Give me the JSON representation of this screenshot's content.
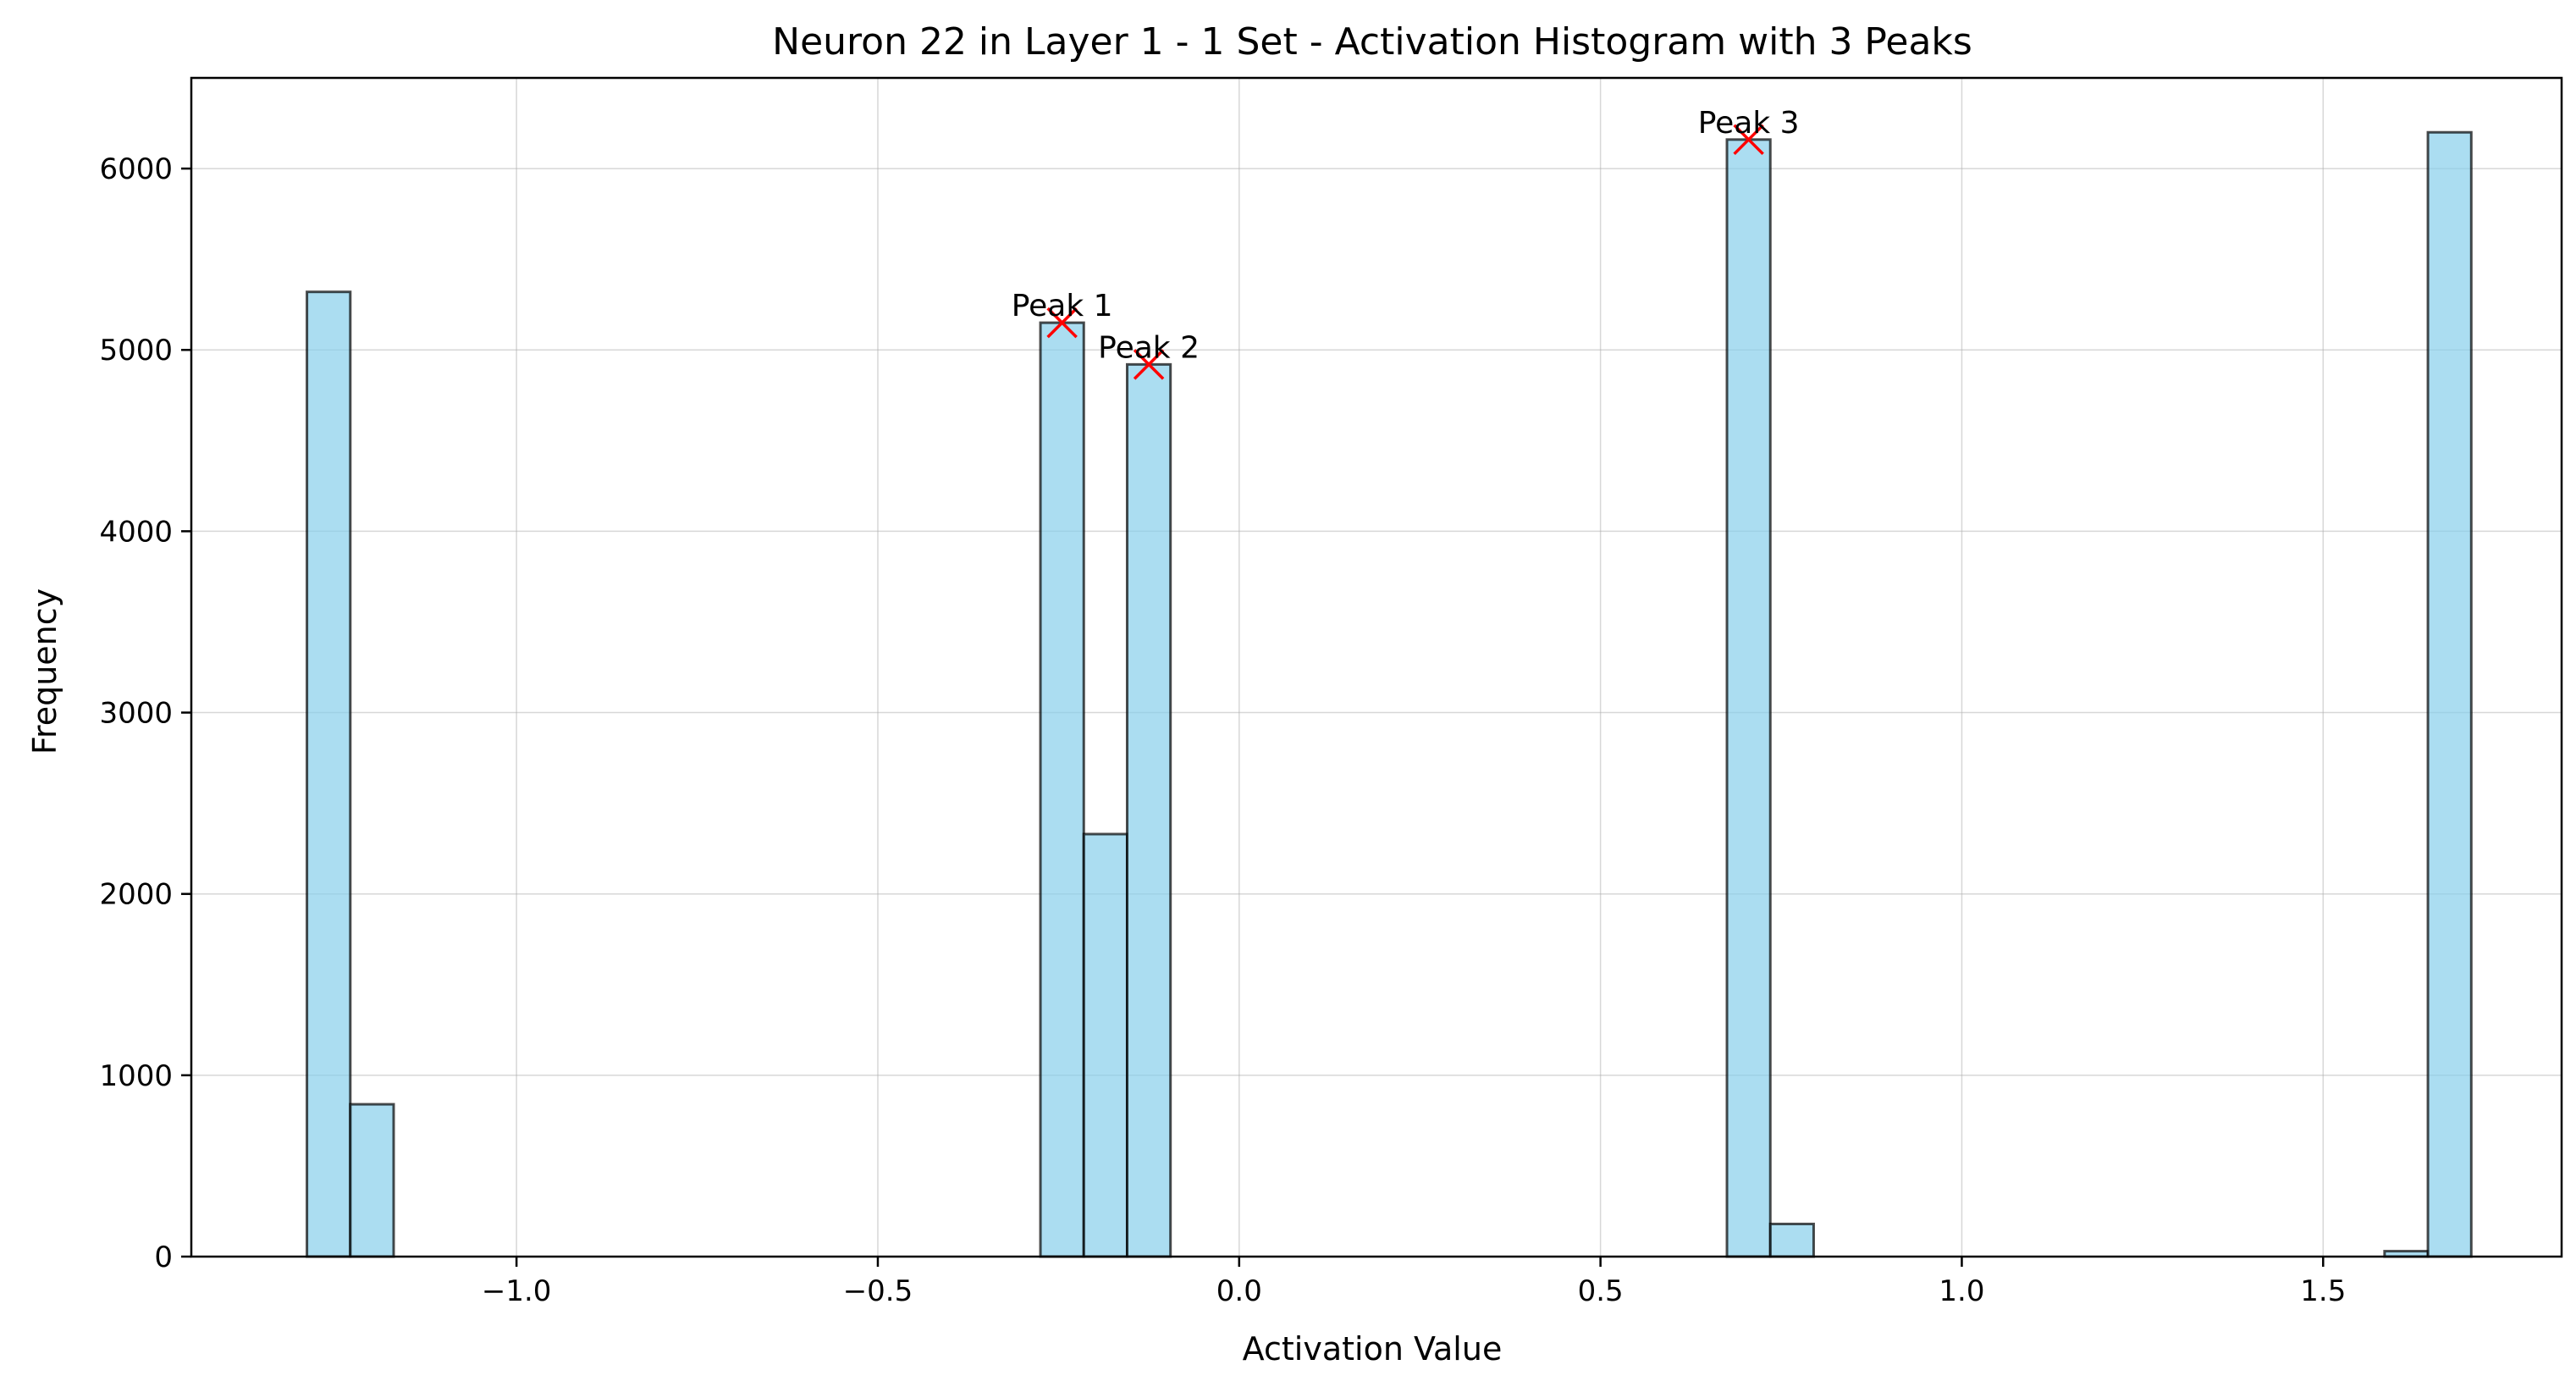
{
  "chart_data": {
    "type": "bar",
    "title": "Neuron 22 in Layer 1 - 1 Set - Activation Histogram with 3 Peaks",
    "xlabel": "Activation Value",
    "ylabel": "Frequency",
    "xlim": [
      -1.45,
      1.83
    ],
    "ylim": [
      0,
      6500
    ],
    "bin_width": 0.06,
    "x_ticks": [
      -1.0,
      -0.5,
      0.0,
      0.5,
      1.0,
      1.5
    ],
    "x_tick_labels": [
      "−1.0",
      "−0.5",
      "0.0",
      "0.5",
      "1.0",
      "1.5"
    ],
    "y_ticks": [
      0,
      1000,
      2000,
      3000,
      4000,
      5000,
      6000
    ],
    "y_tick_labels": [
      "0",
      "1000",
      "2000",
      "3000",
      "4000",
      "5000",
      "6000"
    ],
    "grid": true,
    "bar_color": "#87CEEB",
    "marker_color": "#ff0000",
    "bins": [
      {
        "x0": -1.29,
        "x1": -1.23,
        "value": 5320
      },
      {
        "x0": -1.23,
        "x1": -1.17,
        "value": 840
      },
      {
        "x0": -0.275,
        "x1": -0.215,
        "value": 5150
      },
      {
        "x0": -0.215,
        "x1": -0.155,
        "value": 2330
      },
      {
        "x0": -0.155,
        "x1": -0.095,
        "value": 4920
      },
      {
        "x0": 0.675,
        "x1": 0.735,
        "value": 6160
      },
      {
        "x0": 0.735,
        "x1": 0.795,
        "value": 180
      },
      {
        "x0": 1.585,
        "x1": 1.645,
        "value": 30
      },
      {
        "x0": 1.645,
        "x1": 1.705,
        "value": 6200
      }
    ],
    "peaks": [
      {
        "label": "Peak 1",
        "x": -0.245,
        "y": 5150
      },
      {
        "label": "Peak 2",
        "x": -0.125,
        "y": 4920
      },
      {
        "label": "Peak 3",
        "x": 0.705,
        "y": 6160
      }
    ]
  }
}
